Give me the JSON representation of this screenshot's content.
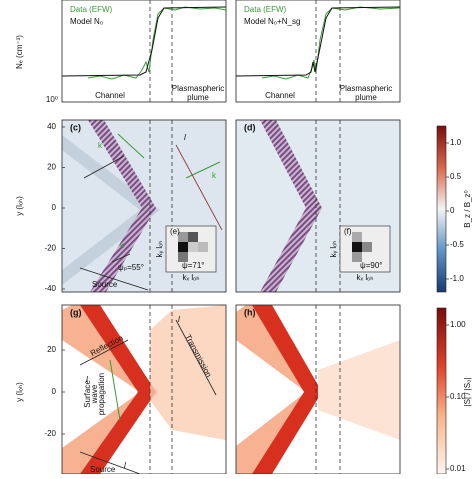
{
  "top": {
    "left": {
      "legend_data": "Data (EFW)",
      "legend_model": "Model N₀",
      "ylabel": "Nₑ (cm⁻³)",
      "ytick": "10⁰",
      "channel": "Channel",
      "plume": [
        "Plasmaspheric",
        "plume"
      ]
    },
    "right": {
      "legend_data": "Data (EFW)",
      "legend_model": "Model N₀+N_sg",
      "channel": "Channel",
      "plume": [
        "Plasmaspheric",
        "plume"
      ]
    }
  },
  "middle": {
    "c": {
      "label": "(c)",
      "k1": "k",
      "k2": "k",
      "k3": "k",
      "l": "l",
      "angle": "ψₚ=55°",
      "source": "Source",
      "inset_label": "(e)",
      "inset_angle": "ψ=71°",
      "inset_ylabel": "kᵧ lₒₕ",
      "inset_xlabel": "kₓ lₒₕ"
    },
    "d": {
      "label": "(d)",
      "inset_label": "(f)",
      "inset_angle": "ψ=90°",
      "inset_ylabel": "kᵧ lₒₕ",
      "inset_xlabel": "kₓ lₒₕ"
    },
    "ylabel": "y (lₒₕ)",
    "yticks": [
      "40",
      "20",
      "0",
      "-20",
      "-40"
    ],
    "colorbar": {
      "label": "B_z / B_z⁰",
      "ticks": [
        "1.0",
        "0.5",
        "0",
        "-0.5",
        "-1.0"
      ]
    }
  },
  "bottom": {
    "g": {
      "label": "(g)",
      "reflection": "Reflection",
      "transmission": "Transmission",
      "l1": "l",
      "l2": "l",
      "l3": "l",
      "surface": [
        "Surface",
        "wave",
        "propagation"
      ],
      "source": "Source"
    },
    "h": {
      "label": "(h)"
    },
    "ylabel": "y (lₒₕ)",
    "yticks": [
      "20",
      "0",
      "-20"
    ],
    "colorbar": {
      "label": "|S| / |S₀|",
      "ticks": [
        "1.00",
        "0.10",
        "0.01"
      ]
    }
  }
}
